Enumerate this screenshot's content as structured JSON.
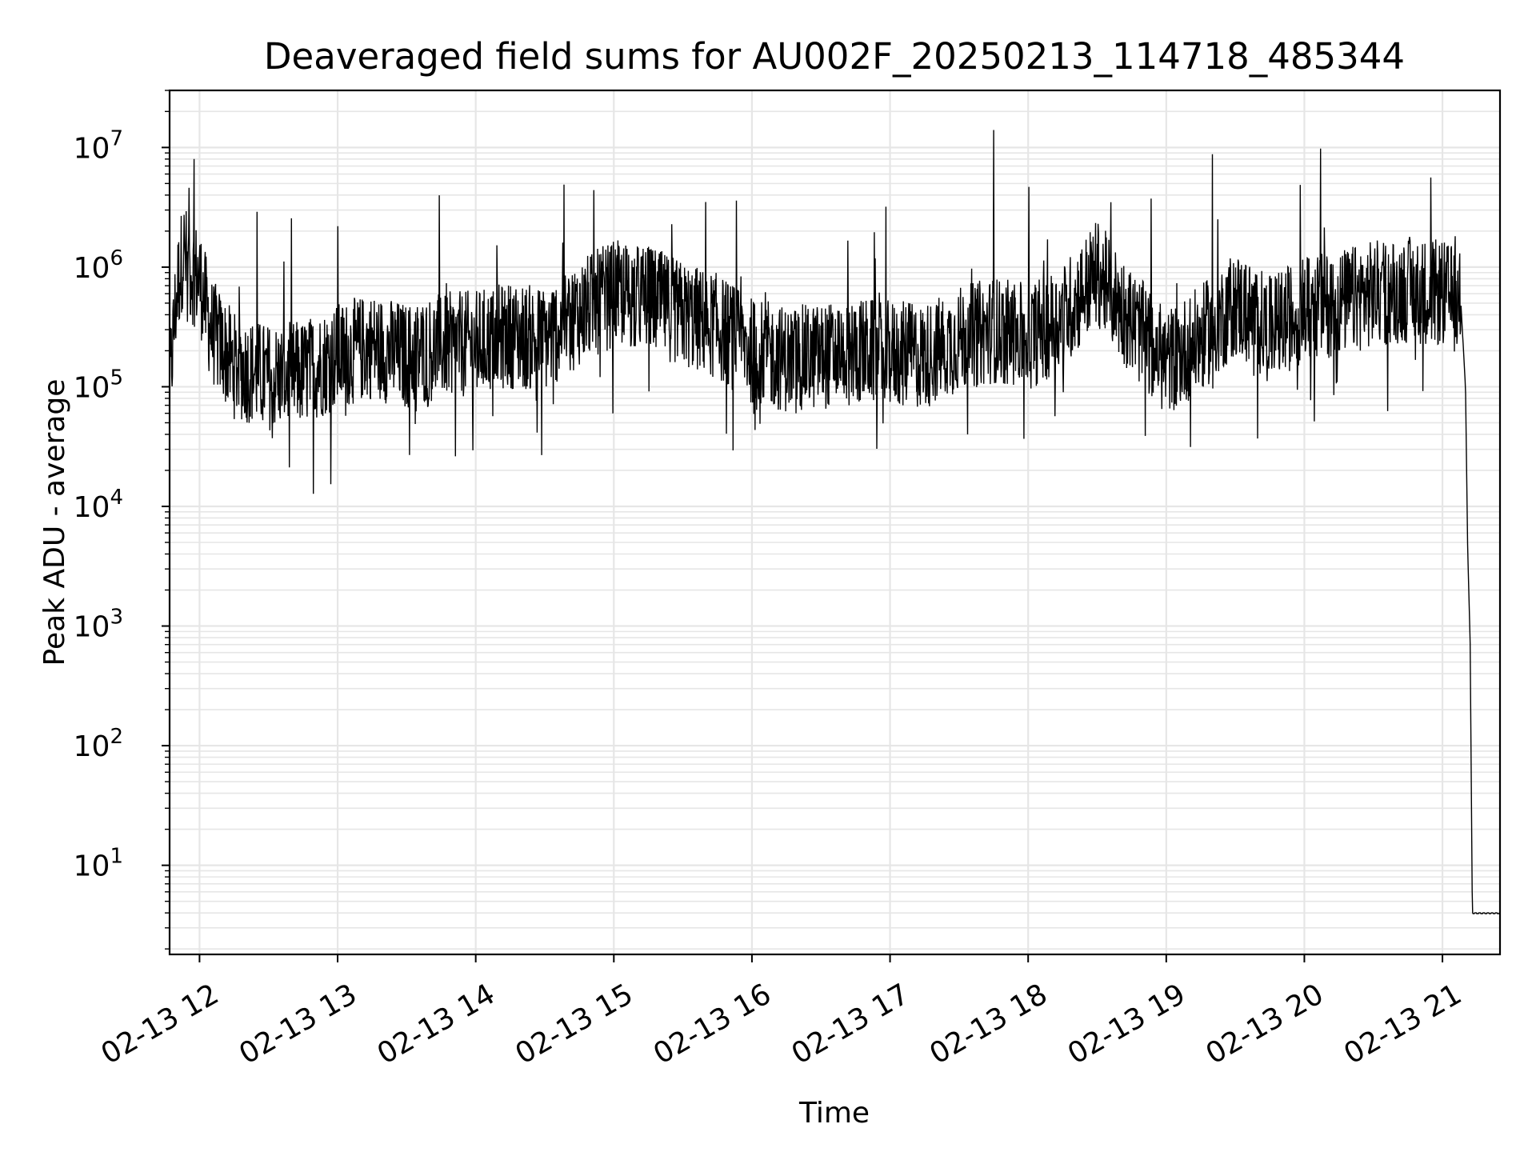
{
  "chart_data": {
    "type": "line",
    "title": "Deaveraged field sums for AU002F_20250213_114718_485344",
    "xlabel": "Time",
    "ylabel": "Peak ADU - average",
    "yscale": "log",
    "ylim": [
      1.8,
      30000000
    ],
    "xlim": [
      "2025-02-13 11:47",
      "2025-02-13 21:25"
    ],
    "grid": true,
    "line_color": "#000000",
    "x_ticks": [
      "02-13 12",
      "02-13 13",
      "02-13 14",
      "02-13 15",
      "02-13 16",
      "02-13 17",
      "02-13 18",
      "02-13 19",
      "02-13 20",
      "02-13 21"
    ],
    "y_ticks": [
      {
        "base": "10",
        "exp": "1"
      },
      {
        "base": "10",
        "exp": "2"
      },
      {
        "base": "10",
        "exp": "3"
      },
      {
        "base": "10",
        "exp": "4"
      },
      {
        "base": "10",
        "exp": "5"
      },
      {
        "base": "10",
        "exp": "6"
      },
      {
        "base": "10",
        "exp": "7"
      }
    ],
    "series": [
      {
        "description": "approximate envelope of the noisy time series, values in ADU",
        "x": [
          "2025-02-13 11:47",
          "2025-02-13 11:50",
          "2025-02-13 11:53",
          "2025-02-13 11:55",
          "2025-02-13 12:00",
          "2025-02-13 12:05",
          "2025-02-13 12:15",
          "2025-02-13 12:30",
          "2025-02-13 12:45",
          "2025-02-13 13:00",
          "2025-02-13 13:15",
          "2025-02-13 13:30",
          "2025-02-13 13:45",
          "2025-02-13 14:00",
          "2025-02-13 14:15",
          "2025-02-13 14:30",
          "2025-02-13 14:45",
          "2025-02-13 15:00",
          "2025-02-13 15:15",
          "2025-02-13 15:30",
          "2025-02-13 15:45",
          "2025-02-13 16:00",
          "2025-02-13 16:15",
          "2025-02-13 16:30",
          "2025-02-13 16:45",
          "2025-02-13 17:00",
          "2025-02-13 17:15",
          "2025-02-13 17:30",
          "2025-02-13 17:45",
          "2025-02-13 18:00",
          "2025-02-13 18:15",
          "2025-02-13 18:30",
          "2025-02-13 18:45",
          "2025-02-13 19:00",
          "2025-02-13 19:15",
          "2025-02-13 19:30",
          "2025-02-13 19:45",
          "2025-02-13 20:00",
          "2025-02-13 20:15",
          "2025-02-13 20:30",
          "2025-02-13 20:45",
          "2025-02-13 21:00",
          "2025-02-13 21:08",
          "2025-02-13 21:10",
          "2025-02-13 21:11",
          "2025-02-13 21:12",
          "2025-02-13 21:13",
          "2025-02-13 21:25"
        ],
        "y": [
          100000,
          600000,
          1400000,
          1000000,
          800000,
          300000,
          150000,
          120000,
          130000,
          180000,
          220000,
          180000,
          220000,
          230000,
          270000,
          250000,
          420000,
          600000,
          550000,
          400000,
          320000,
          200000,
          170000,
          180000,
          200000,
          190000,
          180000,
          250000,
          300000,
          260000,
          380000,
          900000,
          350000,
          160000,
          250000,
          500000,
          300000,
          450000,
          500000,
          600000,
          650000,
          600000,
          500000,
          100000,
          4000,
          800,
          4,
          4
        ]
      }
    ],
    "notable_peaks": [
      {
        "x": "2025-02-13 17:45",
        "y": 14000000
      },
      {
        "x": "2025-02-13 20:07",
        "y": 9800000
      },
      {
        "x": "2025-02-13 19:20",
        "y": 8800000
      },
      {
        "x": "2025-02-13 15:40",
        "y": 3500000
      },
      {
        "x": "2025-02-13 12:25",
        "y": 2900000
      },
      {
        "x": "2025-02-13 13:00",
        "y": 2200000
      }
    ]
  }
}
